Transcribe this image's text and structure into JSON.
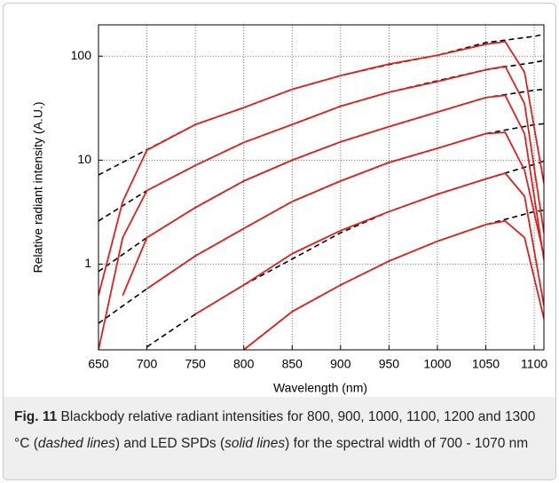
{
  "chart_data": {
    "type": "line",
    "xlabel": "Wavelength (nm)",
    "ylabel": "Relative radiant intensity (A.U.)",
    "xlim": [
      650,
      1110
    ],
    "xticks": [
      650,
      700,
      750,
      800,
      850,
      900,
      950,
      1000,
      1050,
      1100
    ],
    "ylim": [
      0.15,
      200
    ],
    "yticks": [
      1,
      10,
      100
    ],
    "log_y": true,
    "grid": true,
    "series": [
      {
        "color": "#000000",
        "line_style": "dashed",
        "x": [
          650,
          700,
          750,
          800,
          850,
          900,
          950,
          1000,
          1050,
          1100,
          1110
        ],
        "values": [
          7.2,
          12.6,
          22,
          32,
          48,
          65,
          83,
          102,
          135,
          155,
          162
        ]
      },
      {
        "color": "#000000",
        "line_style": "dashed",
        "x": [
          650,
          700,
          750,
          800,
          850,
          900,
          950,
          1000,
          1050,
          1100,
          1110
        ],
        "values": [
          2.6,
          5.1,
          8.9,
          14.8,
          22,
          33,
          45,
          58,
          74,
          87,
          91
        ]
      },
      {
        "color": "#000000",
        "line_style": "dashed",
        "x": [
          650,
          700,
          750,
          800,
          850,
          900,
          950,
          1000,
          1050,
          1100,
          1110
        ],
        "values": [
          0.85,
          1.8,
          3.5,
          6.3,
          10,
          15,
          21,
          29,
          40,
          47,
          48
        ]
      },
      {
        "color": "#000000",
        "line_style": "dashed",
        "x": [
          650,
          700,
          750,
          800,
          850,
          900,
          950,
          1000,
          1050,
          1100,
          1110
        ],
        "values": [
          0.27,
          0.58,
          1.2,
          2.2,
          4,
          6.3,
          9.5,
          13,
          18,
          21.9,
          22.4
        ]
      },
      {
        "color": "#000000",
        "line_style": "dashed",
        "x": [
          650,
          700,
          750,
          800,
          850,
          900,
          950,
          1000,
          1050,
          1100,
          1110
        ],
        "values": [
          null,
          0.16,
          0.33,
          0.63,
          1.12,
          2.0,
          3.2,
          4.7,
          6.6,
          9.1,
          9.8
        ]
      },
      {
        "color": "#000000",
        "line_style": "dashed",
        "x": [
          650,
          700,
          750,
          800,
          850,
          900,
          950,
          1000,
          1050,
          1100,
          1110
        ],
        "values": [
          null,
          null,
          null,
          0.15,
          0.35,
          0.63,
          1.07,
          1.66,
          2.4,
          3.2,
          3.3
        ]
      },
      {
        "color": "#e0201b",
        "line_style": "solid",
        "x": [
          650,
          675,
          700,
          750,
          800,
          850,
          900,
          950,
          1000,
          1050,
          1070,
          1090,
          1110
        ],
        "values": [
          0.5,
          4,
          12.5,
          22,
          32,
          48,
          65,
          84,
          102,
          130,
          138,
          70,
          6
        ]
      },
      {
        "color": "#e0201b",
        "line_style": "solid",
        "x": [
          650,
          675,
          700,
          750,
          800,
          850,
          900,
          950,
          1000,
          1050,
          1070,
          1090,
          1110
        ],
        "values": [
          0.15,
          1.8,
          5.1,
          8.9,
          14.8,
          22,
          33,
          45,
          57,
          74,
          80,
          35,
          2
        ]
      },
      {
        "color": "#e0201b",
        "line_style": "solid",
        "x": [
          650,
          675,
          700,
          750,
          800,
          850,
          900,
          950,
          1000,
          1050,
          1070,
          1090,
          1110
        ],
        "values": [
          null,
          0.5,
          1.8,
          3.5,
          6.3,
          10,
          15,
          21,
          29,
          40,
          42,
          18,
          1.1
        ]
      },
      {
        "color": "#e0201b",
        "line_style": "solid",
        "x": [
          650,
          675,
          700,
          750,
          800,
          850,
          900,
          950,
          1000,
          1050,
          1070,
          1090,
          1110
        ],
        "values": [
          null,
          null,
          0.58,
          1.2,
          2.2,
          4,
          6.3,
          9.5,
          13,
          18,
          18.5,
          8,
          1.2
        ]
      },
      {
        "color": "#e0201b",
        "line_style": "solid",
        "x": [
          650,
          675,
          700,
          750,
          800,
          850,
          900,
          950,
          1000,
          1050,
          1070,
          1090,
          1110
        ],
        "values": [
          null,
          null,
          null,
          0.33,
          0.63,
          1.26,
          2.1,
          3.2,
          4.7,
          6.6,
          7.5,
          4.5,
          0.4
        ]
      },
      {
        "color": "#e0201b",
        "line_style": "solid",
        "x": [
          650,
          675,
          700,
          750,
          800,
          850,
          900,
          950,
          1000,
          1050,
          1070,
          1090,
          1110
        ],
        "values": [
          null,
          null,
          null,
          null,
          0.15,
          0.35,
          0.63,
          1.07,
          1.66,
          2.4,
          2.6,
          1.8,
          0.3
        ]
      }
    ]
  },
  "caption": {
    "label": "Fig. 11",
    "text_1": " Blackbody relative radiant intensities for 800, 900, 1000, 1100, 1200 and 1300 °C (",
    "em_1": "dashed lines",
    "text_2": ") and LED SPDs (",
    "em_2": "solid lines",
    "text_3": ") for the spectral width of 700 - 1070 nm"
  }
}
